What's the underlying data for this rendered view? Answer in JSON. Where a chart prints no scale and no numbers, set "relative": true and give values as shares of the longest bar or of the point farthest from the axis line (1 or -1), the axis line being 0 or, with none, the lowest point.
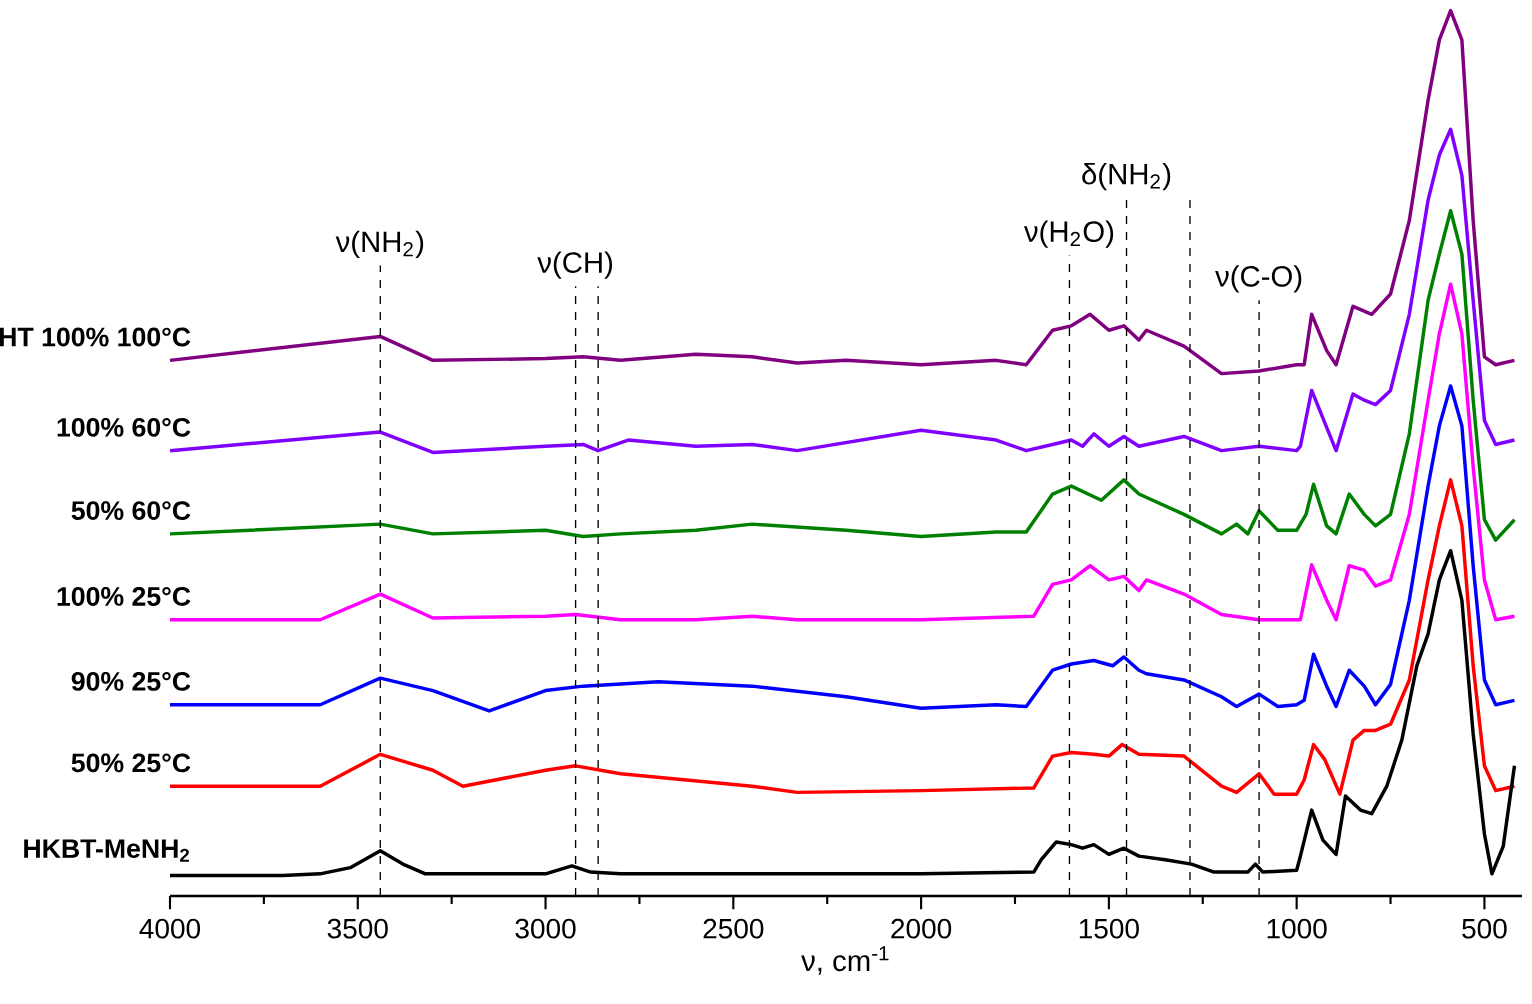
{
  "chart_data": {
    "type": "line",
    "relative": true,
    "xlabel": "ν, cm$^{-1}$",
    "xlim": [
      4000,
      400
    ],
    "xticks": [
      4000,
      3500,
      3000,
      2500,
      2000,
      1500,
      1000,
      500
    ],
    "legend": false,
    "grid": false,
    "marker": "none",
    "line_style": "solid",
    "series": [
      {
        "name": "HT 100% 100°C",
        "color": "#800080",
        "x": [
          4000,
          3440,
          3300,
          3000,
          2900,
          2800,
          2600,
          2450,
          2330,
          2200,
          2000,
          1800,
          1720,
          1650,
          1600,
          1550,
          1500,
          1460,
          1420,
          1400,
          1300,
          1200,
          1100,
          1000,
          980,
          960,
          920,
          895,
          850,
          800,
          750,
          700,
          650,
          620,
          590,
          560,
          530,
          500,
          470,
          420
        ],
        "values": [
          0.605,
          0.632,
          0.605,
          0.607,
          0.609,
          0.605,
          0.612,
          0.609,
          0.602,
          0.605,
          0.6,
          0.605,
          0.6,
          0.639,
          0.644,
          0.657,
          0.639,
          0.644,
          0.628,
          0.639,
          0.621,
          0.59,
          0.593,
          0.6,
          0.6,
          0.657,
          0.616,
          0.6,
          0.666,
          0.657,
          0.68,
          0.763,
          0.899,
          0.967,
          1.0,
          0.967,
          0.763,
          0.609,
          0.6,
          0.605
        ]
      },
      {
        "name": "100% 60°C",
        "color": "#8000ff",
        "x": [
          4000,
          3440,
          3300,
          3000,
          2900,
          2860,
          2780,
          2600,
          2450,
          2330,
          2000,
          1800,
          1720,
          1650,
          1600,
          1570,
          1540,
          1500,
          1460,
          1420,
          1300,
          1200,
          1100,
          1000,
          990,
          960,
          895,
          850,
          820,
          790,
          750,
          700,
          650,
          620,
          590,
          560,
          530,
          500,
          470,
          420
        ],
        "values": [
          0.503,
          0.524,
          0.501,
          0.508,
          0.51,
          0.503,
          0.515,
          0.508,
          0.51,
          0.503,
          0.526,
          0.515,
          0.503,
          0.51,
          0.515,
          0.508,
          0.522,
          0.508,
          0.519,
          0.508,
          0.519,
          0.503,
          0.508,
          0.503,
          0.508,
          0.571,
          0.503,
          0.567,
          0.56,
          0.555,
          0.571,
          0.657,
          0.786,
          0.837,
          0.866,
          0.814,
          0.673,
          0.537,
          0.51,
          0.515
        ]
      },
      {
        "name": "50% 60°C",
        "color": "#008000",
        "x": [
          4000,
          3440,
          3300,
          3000,
          2900,
          2800,
          2600,
          2450,
          2200,
          2000,
          1800,
          1720,
          1650,
          1600,
          1520,
          1460,
          1420,
          1300,
          1200,
          1160,
          1130,
          1100,
          1050,
          1000,
          975,
          955,
          920,
          895,
          860,
          820,
          790,
          750,
          700,
          650,
          620,
          590,
          560,
          530,
          500,
          470,
          420
        ],
        "values": [
          0.409,
          0.42,
          0.409,
          0.413,
          0.406,
          0.409,
          0.413,
          0.42,
          0.413,
          0.406,
          0.411,
          0.411,
          0.454,
          0.463,
          0.447,
          0.47,
          0.454,
          0.431,
          0.409,
          0.42,
          0.409,
          0.435,
          0.413,
          0.413,
          0.431,
          0.465,
          0.418,
          0.409,
          0.454,
          0.431,
          0.418,
          0.431,
          0.522,
          0.673,
          0.725,
          0.774,
          0.725,
          0.56,
          0.425,
          0.402,
          0.425
        ]
      },
      {
        "name": "100% 25°C",
        "color": "#ff00ff",
        "x": [
          4000,
          3600,
          3440,
          3300,
          3000,
          2920,
          2800,
          2600,
          2450,
          2330,
          2000,
          1700,
          1650,
          1600,
          1550,
          1500,
          1460,
          1420,
          1400,
          1300,
          1200,
          1100,
          1000,
          990,
          960,
          920,
          895,
          860,
          820,
          790,
          750,
          700,
          650,
          620,
          590,
          560,
          530,
          500,
          470,
          420
        ],
        "values": [
          0.312,
          0.312,
          0.341,
          0.314,
          0.316,
          0.318,
          0.312,
          0.312,
          0.316,
          0.312,
          0.312,
          0.316,
          0.352,
          0.357,
          0.373,
          0.357,
          0.361,
          0.345,
          0.357,
          0.341,
          0.318,
          0.312,
          0.312,
          0.312,
          0.374,
          0.334,
          0.312,
          0.373,
          0.368,
          0.35,
          0.357,
          0.431,
          0.56,
          0.635,
          0.691,
          0.635,
          0.485,
          0.357,
          0.312,
          0.316
        ]
      },
      {
        "name": "90% 25°C",
        "color": "#0000ff",
        "x": [
          4000,
          3600,
          3440,
          3300,
          3150,
          3000,
          2900,
          2700,
          2450,
          2200,
          2000,
          1800,
          1720,
          1650,
          1600,
          1540,
          1490,
          1460,
          1420,
          1400,
          1300,
          1200,
          1160,
          1100,
          1050,
          1000,
          980,
          955,
          920,
          895,
          860,
          820,
          790,
          750,
          700,
          650,
          620,
          590,
          560,
          530,
          500,
          470,
          420
        ],
        "values": [
          0.216,
          0.216,
          0.246,
          0.232,
          0.209,
          0.232,
          0.237,
          0.242,
          0.237,
          0.225,
          0.212,
          0.216,
          0.214,
          0.255,
          0.262,
          0.266,
          0.26,
          0.27,
          0.255,
          0.251,
          0.244,
          0.225,
          0.214,
          0.228,
          0.214,
          0.216,
          0.221,
          0.273,
          0.237,
          0.214,
          0.255,
          0.237,
          0.216,
          0.239,
          0.334,
          0.463,
          0.531,
          0.576,
          0.531,
          0.373,
          0.244,
          0.216,
          0.221
        ]
      },
      {
        "name": "50% 25°C",
        "color": "#ff0000",
        "x": [
          4000,
          3600,
          3440,
          3300,
          3220,
          3000,
          2920,
          2800,
          2450,
          2330,
          2000,
          1700,
          1650,
          1600,
          1540,
          1500,
          1465,
          1420,
          1300,
          1200,
          1160,
          1100,
          1060,
          1000,
          980,
          955,
          925,
          885,
          850,
          820,
          790,
          750,
          700,
          650,
          620,
          590,
          560,
          530,
          500,
          470,
          420
        ],
        "values": [
          0.124,
          0.124,
          0.16,
          0.142,
          0.124,
          0.142,
          0.147,
          0.138,
          0.124,
          0.117,
          0.119,
          0.122,
          0.158,
          0.162,
          0.16,
          0.158,
          0.171,
          0.16,
          0.158,
          0.124,
          0.117,
          0.138,
          0.115,
          0.115,
          0.131,
          0.171,
          0.154,
          0.115,
          0.176,
          0.187,
          0.187,
          0.194,
          0.244,
          0.357,
          0.418,
          0.47,
          0.418,
          0.26,
          0.147,
          0.119,
          0.124
        ]
      },
      {
        "name": "HKBT-MeNH$_{2}$",
        "color": "#000000",
        "x": [
          4000,
          3700,
          3600,
          3520,
          3440,
          3380,
          3320,
          3000,
          2930,
          2880,
          2800,
          2400,
          2000,
          1700,
          1680,
          1640,
          1600,
          1570,
          1540,
          1500,
          1460,
          1420,
          1350,
          1280,
          1220,
          1130,
          1110,
          1090,
          1000,
          990,
          960,
          930,
          895,
          870,
          830,
          800,
          760,
          720,
          680,
          650,
          620,
          590,
          560,
          530,
          500,
          480,
          450,
          420
        ],
        "values": [
          0.023,
          0.023,
          0.025,
          0.032,
          0.051,
          0.036,
          0.025,
          0.025,
          0.034,
          0.027,
          0.025,
          0.025,
          0.025,
          0.027,
          0.041,
          0.061,
          0.058,
          0.054,
          0.058,
          0.047,
          0.054,
          0.045,
          0.041,
          0.036,
          0.027,
          0.027,
          0.036,
          0.027,
          0.029,
          0.045,
          0.097,
          0.063,
          0.047,
          0.113,
          0.097,
          0.093,
          0.124,
          0.176,
          0.26,
          0.296,
          0.357,
          0.39,
          0.334,
          0.183,
          0.07,
          0.025,
          0.056,
          0.147
        ]
      }
    ],
    "ref_lines": [
      {
        "axis": "x",
        "value": 3440,
        "label": "ν(NH$_{2}$)",
        "line_style": "dashed",
        "color": "#000000"
      },
      {
        "axis": "x",
        "value": 2920,
        "label": "ν(CH)",
        "line_style": "dashed",
        "color": "#000000"
      },
      {
        "axis": "x",
        "value": 2860,
        "line_style": "dashed",
        "color": "#000000"
      },
      {
        "axis": "x",
        "value": 1605,
        "label": "ν(H$_{2}$O)",
        "line_style": "dashed",
        "color": "#000000"
      },
      {
        "axis": "x",
        "value": 1453,
        "label": "δ(NH$_{2}$)",
        "line_style": "dashed",
        "color": "#000000"
      },
      {
        "axis": "x",
        "value": 1284,
        "line_style": "dashed",
        "color": "#000000"
      },
      {
        "axis": "x",
        "value": 1100,
        "label": "ν(C-O)",
        "line_style": "dashed",
        "color": "#000000"
      }
    ]
  }
}
